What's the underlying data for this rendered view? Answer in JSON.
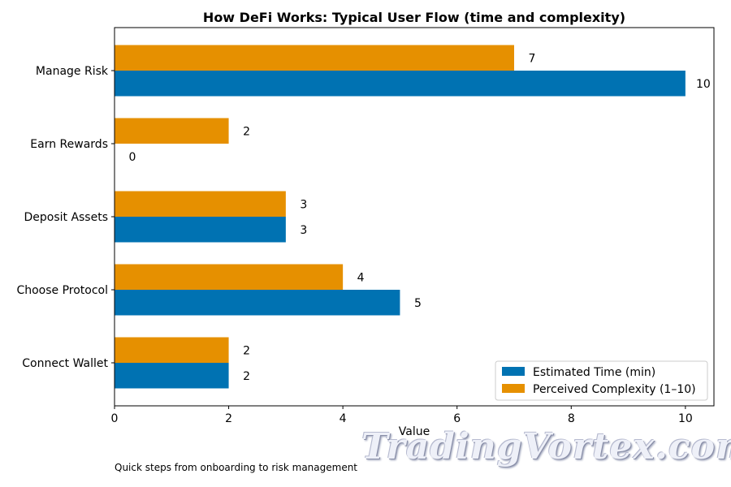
{
  "chart_data": {
    "type": "bar",
    "orientation": "horizontal",
    "title": "How DeFi Works: Typical User Flow (time and complexity)",
    "xlabel": "Value",
    "ylabel": "",
    "categories": [
      "Connect Wallet",
      "Choose Protocol",
      "Deposit Assets",
      "Earn Rewards",
      "Manage Risk"
    ],
    "series": [
      {
        "name": "Estimated Time (min)",
        "color": "#0072b2",
        "values": [
          2,
          5,
          3,
          0,
          10
        ]
      },
      {
        "name": "Perceived Complexity (1–10)",
        "color": "#e69000",
        "values": [
          2,
          4,
          3,
          2,
          7
        ]
      }
    ],
    "xlim": [
      0,
      10.5
    ],
    "xticks": [
      0,
      2,
      4,
      6,
      8,
      10
    ],
    "grid": false,
    "legend_position": "lower-right",
    "data_labels": true
  },
  "caption": "Quick steps from onboarding to risk management",
  "watermark": "TradingVortex.com"
}
